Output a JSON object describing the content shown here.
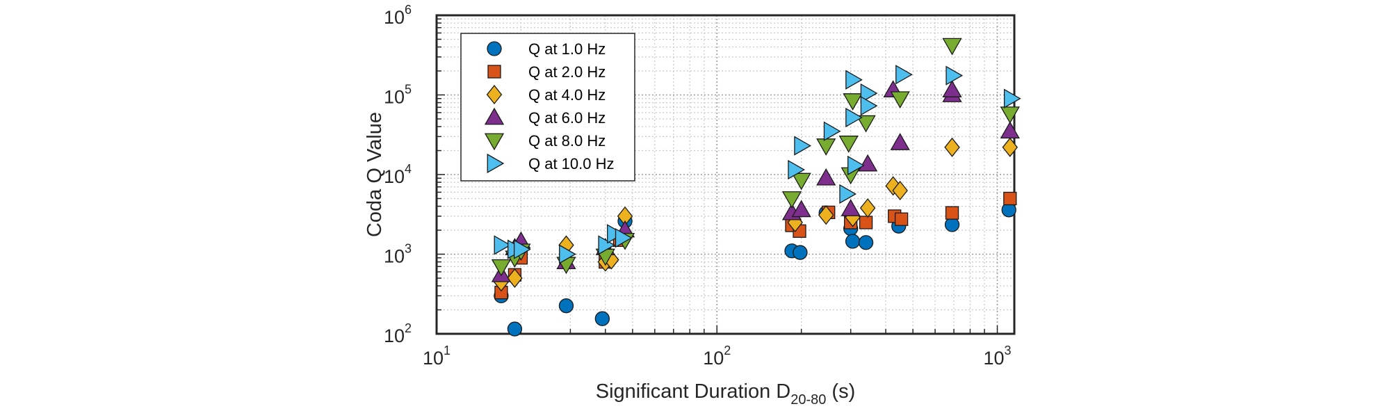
{
  "chart_data": {
    "type": "scatter",
    "xlabel": "Significant Duration D",
    "xlabel_subscript": "20-80",
    "xlabel_suffix": " (s)",
    "ylabel": "Coda Q Value",
    "xscale": "log",
    "yscale": "log",
    "xlim": [
      10,
      1150
    ],
    "ylim": [
      100,
      1000000
    ],
    "x_tick_labels": [
      {
        "base": "10",
        "exp": "1",
        "value": 10
      },
      {
        "base": "10",
        "exp": "2",
        "value": 100
      },
      {
        "base": "10",
        "exp": "3",
        "value": 1000
      }
    ],
    "y_tick_labels": [
      {
        "base": "10",
        "exp": "2",
        "value": 100
      },
      {
        "base": "10",
        "exp": "3",
        "value": 1000
      },
      {
        "base": "10",
        "exp": "4",
        "value": 10000
      },
      {
        "base": "10",
        "exp": "5",
        "value": 100000
      },
      {
        "base": "10",
        "exp": "6",
        "value": 1000000
      }
    ],
    "grid": true,
    "minor_grid": true,
    "legend_position": "top-left",
    "series": [
      {
        "name": "Q at 1.0 Hz",
        "marker": "circle",
        "color": "#0072BD",
        "points": [
          [
            17,
            300
          ],
          [
            19,
            115
          ],
          [
            29,
            225
          ],
          [
            39,
            155
          ],
          [
            47,
            2600
          ],
          [
            185,
            1100
          ],
          [
            198,
            1050
          ],
          [
            245,
            3300
          ],
          [
            300,
            2100
          ],
          [
            305,
            1450
          ],
          [
            340,
            1400
          ],
          [
            445,
            2250
          ],
          [
            690,
            2350
          ],
          [
            1100,
            3600
          ]
        ]
      },
      {
        "name": "Q at 2.0 Hz",
        "marker": "square",
        "color": "#D95319",
        "points": [
          [
            17,
            330
          ],
          [
            19,
            550
          ],
          [
            20,
            900
          ],
          [
            40,
            800
          ],
          [
            45,
            1500
          ],
          [
            185,
            2300
          ],
          [
            197,
            1950
          ],
          [
            250,
            3350
          ],
          [
            300,
            2500
          ],
          [
            340,
            2500
          ],
          [
            430,
            3000
          ],
          [
            455,
            2750
          ],
          [
            690,
            3300
          ],
          [
            1110,
            5000
          ]
        ]
      },
      {
        "name": "Q at 4.0 Hz",
        "marker": "diamond",
        "color": "#EDB120",
        "points": [
          [
            17,
            450
          ],
          [
            19,
            500
          ],
          [
            29,
            1300
          ],
          [
            40,
            800
          ],
          [
            42,
            850
          ],
          [
            47,
            3000
          ],
          [
            190,
            2500
          ],
          [
            245,
            3100
          ],
          [
            305,
            2900
          ],
          [
            345,
            3800
          ],
          [
            425,
            7200
          ],
          [
            450,
            6300
          ],
          [
            690,
            22000
          ],
          [
            1110,
            22000
          ]
        ]
      },
      {
        "name": "Q at 6.0 Hz",
        "marker": "triangle-up",
        "color": "#7E2F8E",
        "points": [
          [
            17,
            550
          ],
          [
            19,
            1200
          ],
          [
            20,
            1450
          ],
          [
            29,
            800
          ],
          [
            40,
            1200
          ],
          [
            47,
            2000
          ],
          [
            185,
            3300
          ],
          [
            200,
            3600
          ],
          [
            245,
            9000
          ],
          [
            300,
            3700
          ],
          [
            345,
            13500
          ],
          [
            425,
            115000
          ],
          [
            450,
            25000
          ],
          [
            690,
            100000
          ],
          [
            690,
            115000
          ],
          [
            1110,
            35000
          ]
        ]
      },
      {
        "name": "Q at 8.0 Hz",
        "marker": "triangle-down",
        "color": "#77AC30",
        "points": [
          [
            17,
            700
          ],
          [
            19,
            900
          ],
          [
            20,
            1100
          ],
          [
            29,
            750
          ],
          [
            40,
            950
          ],
          [
            47,
            1500
          ],
          [
            185,
            5000
          ],
          [
            200,
            8500
          ],
          [
            245,
            23000
          ],
          [
            295,
            25000
          ],
          [
            300,
            10000
          ],
          [
            305,
            85000
          ],
          [
            340,
            45000
          ],
          [
            450,
            90000
          ],
          [
            690,
            420000
          ],
          [
            1110,
            58000
          ]
        ]
      },
      {
        "name": "Q at 10.0 Hz",
        "marker": "triangle-right",
        "color": "#4DBEEE",
        "points": [
          [
            17,
            1300
          ],
          [
            19,
            1150
          ],
          [
            20,
            1150
          ],
          [
            29,
            1000
          ],
          [
            40,
            1300
          ],
          [
            43,
            1800
          ],
          [
            46,
            1600
          ],
          [
            190,
            11500
          ],
          [
            200,
            23000
          ],
          [
            255,
            35000
          ],
          [
            290,
            5700
          ],
          [
            305,
            155000
          ],
          [
            305,
            52000
          ],
          [
            310,
            13000
          ],
          [
            345,
            105000
          ],
          [
            345,
            73000
          ],
          [
            460,
            180000
          ],
          [
            695,
            175000
          ],
          [
            1120,
            90000
          ]
        ]
      }
    ]
  }
}
